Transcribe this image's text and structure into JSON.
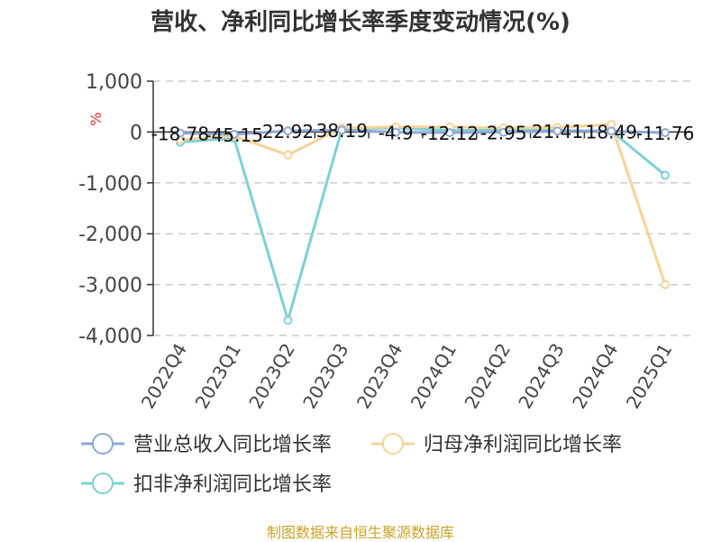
{
  "chart_data": {
    "type": "line",
    "title": "营收、净利同比增长率季度变动情况(%)",
    "ylabel": "%",
    "ylim": [
      -4000,
      1000
    ],
    "yticks": [
      1000,
      0,
      -1000,
      -2000,
      -3000,
      -4000
    ],
    "ytick_labels": [
      "1,000",
      "0",
      "-1,000",
      "-2,000",
      "-3,000",
      "-4,000"
    ],
    "grid": true,
    "legend_position": "bottom",
    "categories": [
      "2022Q4",
      "2023Q1",
      "2023Q2",
      "2023Q3",
      "2023Q4",
      "2024Q1",
      "2024Q2",
      "2024Q3",
      "2024Q4",
      "2025Q1"
    ],
    "series": [
      {
        "name": "营业总收入同比增长率",
        "color": "#8fa8d8",
        "values": [
          -18.78,
          -45.15,
          22.92,
          38.19,
          -4.9,
          -12.12,
          -2.95,
          21.41,
          18.49,
          -11.76
        ],
        "data_labels": [
          "-18.78",
          "-45.15",
          "22.92",
          "38.19",
          "-4.9",
          "-12.12",
          "-2.95",
          "21.41",
          "18.49",
          "-11.76"
        ]
      },
      {
        "name": "归母净利润同比增长率",
        "color": "#f5d49a",
        "values": [
          -150,
          -80,
          -450,
          80,
          100,
          100,
          80,
          90,
          150,
          -3000
        ]
      },
      {
        "name": "扣非净利润同比增长率",
        "color": "#7fd0d4",
        "values": [
          -200,
          -120,
          -3700,
          60,
          80,
          30,
          40,
          30,
          20,
          -850
        ]
      }
    ],
    "source": "制图数据来自恒生聚源数据库"
  }
}
